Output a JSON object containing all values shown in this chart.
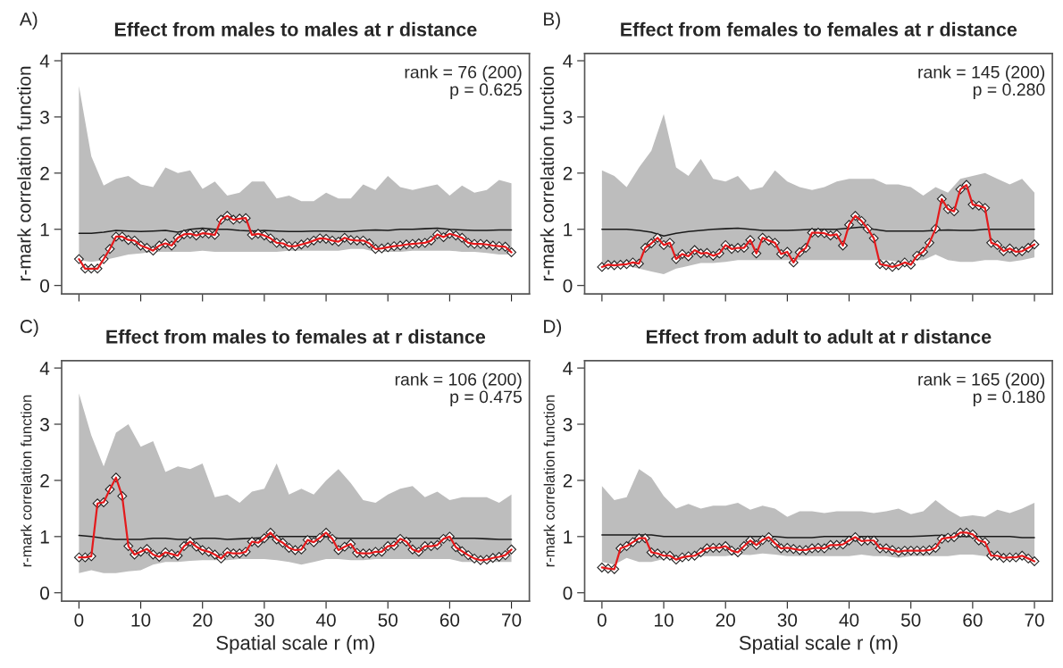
{
  "chart_data": [
    {
      "type": "line",
      "title": "Effect from males to males at r distance",
      "ylabel": "r-mark correlation function",
      "annotations": [
        "A)",
        "rank = 76 (200)\np = 0.625"
      ],
      "xlim": [
        -2.8,
        72.9
      ],
      "xticks": [
        {
          "value": 0,
          "label": null
        },
        {
          "value": 10,
          "label": null
        },
        {
          "value": 20,
          "label": null
        },
        {
          "value": 30,
          "label": null
        },
        {
          "value": 40,
          "label": null
        },
        {
          "value": 50,
          "label": null
        },
        {
          "value": 60,
          "label": null
        },
        {
          "value": 70,
          "label": null
        }
      ],
      "ylim": [
        -0.15,
        4.13
      ],
      "yticks": [
        0,
        1,
        2,
        3,
        4
      ],
      "tick_labels": "y",
      "grid": false,
      "series": [
        {
          "color": "#1a1a1a",
          "marker": "none",
          "x": [
            0,
            2,
            4,
            6,
            8,
            10,
            12,
            14,
            16,
            18,
            20,
            22,
            24,
            26,
            28,
            30,
            32,
            34,
            36,
            38,
            40,
            42,
            44,
            46,
            48,
            50,
            52,
            54,
            56,
            58,
            60,
            62,
            64,
            66,
            68,
            70
          ],
          "values": [
            0.93,
            0.93,
            0.95,
            0.98,
            0.97,
            0.96,
            0.97,
            0.98,
            0.95,
            1.0,
            1.02,
            1.0,
            1.0,
            0.98,
            0.97,
            0.98,
            0.97,
            0.96,
            0.96,
            0.97,
            0.97,
            0.96,
            0.96,
            0.98,
            0.99,
            0.98,
            1.0,
            1.0,
            1.01,
            1.02,
            1.0,
            0.99,
            0.98,
            0.98,
            0.99,
            0.99
          ],
          "lower": [
            0.45,
            0.42,
            0.45,
            0.5,
            0.55,
            0.57,
            0.6,
            0.6,
            0.6,
            0.6,
            0.62,
            0.6,
            0.6,
            0.6,
            0.6,
            0.6,
            0.6,
            0.62,
            0.62,
            0.62,
            0.62,
            0.62,
            0.65,
            0.65,
            0.6,
            0.6,
            0.6,
            0.62,
            0.62,
            0.62,
            0.62,
            0.6,
            0.6,
            0.58,
            0.55,
            0.55
          ],
          "upper": [
            3.55,
            2.3,
            1.78,
            1.9,
            1.95,
            1.8,
            1.75,
            2.1,
            2.0,
            2.05,
            1.72,
            1.85,
            1.6,
            1.65,
            1.85,
            1.85,
            1.55,
            1.6,
            1.5,
            1.5,
            1.65,
            1.55,
            1.55,
            1.8,
            1.7,
            1.95,
            1.75,
            1.7,
            1.75,
            1.8,
            1.6,
            1.78,
            1.65,
            1.7,
            1.88,
            1.82
          ]
        },
        {
          "color": "#e41a1c",
          "marker": "diamond",
          "x": [
            0,
            1,
            2,
            3,
            4,
            5,
            6,
            7,
            8,
            9,
            10,
            11,
            12,
            13,
            14,
            15,
            16,
            17,
            18,
            19,
            20,
            21,
            22,
            23,
            24,
            25,
            26,
            27,
            28,
            29,
            30,
            31,
            32,
            33,
            34,
            35,
            36,
            37,
            38,
            39,
            40,
            41,
            42,
            43,
            44,
            45,
            46,
            47,
            48,
            49,
            50,
            51,
            52,
            53,
            54,
            55,
            56,
            57,
            58,
            59,
            60,
            61,
            62,
            63,
            64,
            65,
            66,
            67,
            68,
            69,
            70
          ],
          "values": [
            0.47,
            0.3,
            0.3,
            0.3,
            0.47,
            0.65,
            0.87,
            0.87,
            0.81,
            0.8,
            0.71,
            0.67,
            0.62,
            0.71,
            0.75,
            0.71,
            0.85,
            0.91,
            0.92,
            0.89,
            0.93,
            0.92,
            0.9,
            1.17,
            1.24,
            1.17,
            1.19,
            1.2,
            0.9,
            0.92,
            0.89,
            0.84,
            0.76,
            0.75,
            0.7,
            0.7,
            0.73,
            0.76,
            0.8,
            0.84,
            0.83,
            0.8,
            0.78,
            0.85,
            0.81,
            0.8,
            0.8,
            0.75,
            0.65,
            0.66,
            0.68,
            0.7,
            0.71,
            0.73,
            0.74,
            0.75,
            0.76,
            0.8,
            0.91,
            0.86,
            0.92,
            0.89,
            0.85,
            0.76,
            0.74,
            0.74,
            0.73,
            0.71,
            0.7,
            0.69,
            0.59
          ]
        }
      ]
    },
    {
      "type": "line",
      "title": "Effect from females to females at r distance",
      "ylabel": "r-mark correlation function",
      "annotations": [
        "B)",
        "rank = 145 (200)\np = 0.280"
      ],
      "xlim": [
        -2.8,
        72.9
      ],
      "xticks": [
        {
          "value": 0,
          "label": null
        },
        {
          "value": 10,
          "label": null
        },
        {
          "value": 20,
          "label": null
        },
        {
          "value": 30,
          "label": null
        },
        {
          "value": 40,
          "label": null
        },
        {
          "value": 50,
          "label": null
        },
        {
          "value": 60,
          "label": null
        },
        {
          "value": 70,
          "label": null
        }
      ],
      "ylim": [
        -0.15,
        4.13
      ],
      "yticks": [
        0,
        1,
        2,
        3,
        4
      ],
      "tick_labels": "y",
      "grid": false,
      "series": [
        {
          "color": "#1a1a1a",
          "marker": "none",
          "x": [
            0,
            2,
            4,
            6,
            8,
            10,
            12,
            14,
            16,
            18,
            20,
            22,
            24,
            26,
            28,
            30,
            32,
            34,
            36,
            38,
            40,
            42,
            44,
            46,
            48,
            50,
            52,
            54,
            56,
            58,
            60,
            62,
            64,
            66,
            68,
            70
          ],
          "values": [
            1.0,
            1.0,
            1.0,
            0.98,
            0.95,
            0.88,
            0.93,
            0.96,
            0.98,
            1.0,
            1.01,
            1.02,
            1.0,
            0.98,
            0.98,
            0.98,
            0.99,
            1.0,
            1.0,
            1.0,
            1.02,
            1.04,
            1.0,
            0.97,
            0.97,
            0.97,
            0.97,
            0.98,
            0.99,
            0.98,
            0.98,
            1.0,
            1.0,
            1.0,
            1.0,
            1.0
          ],
          "lower": [
            0.4,
            0.38,
            0.35,
            0.3,
            0.25,
            0.2,
            0.3,
            0.35,
            0.4,
            0.4,
            0.42,
            0.45,
            0.45,
            0.45,
            0.45,
            0.45,
            0.45,
            0.45,
            0.45,
            0.45,
            0.45,
            0.45,
            0.45,
            0.45,
            0.42,
            0.45,
            0.45,
            0.55,
            0.45,
            0.42,
            0.42,
            0.45,
            0.45,
            0.42,
            0.45,
            0.5
          ],
          "upper": [
            2.05,
            1.95,
            1.75,
            2.1,
            2.4,
            3.05,
            2.1,
            1.95,
            2.25,
            1.9,
            1.85,
            1.95,
            1.7,
            1.75,
            2.05,
            1.85,
            1.75,
            1.7,
            1.75,
            1.85,
            1.9,
            1.9,
            1.9,
            1.8,
            1.8,
            1.75,
            1.6,
            1.75,
            1.65,
            1.9,
            1.95,
            2.0,
            1.9,
            1.8,
            1.9,
            1.65
          ]
        },
        {
          "color": "#e41a1c",
          "marker": "diamond",
          "x": [
            0,
            1,
            2,
            3,
            4,
            5,
            6,
            7,
            8,
            9,
            10,
            11,
            12,
            13,
            14,
            15,
            16,
            17,
            18,
            19,
            20,
            21,
            22,
            23,
            24,
            25,
            26,
            27,
            28,
            29,
            30,
            31,
            32,
            33,
            34,
            35,
            36,
            37,
            38,
            39,
            40,
            41,
            42,
            43,
            44,
            45,
            46,
            47,
            48,
            49,
            50,
            51,
            52,
            53,
            54,
            55,
            56,
            57,
            58,
            59,
            60,
            61,
            62,
            63,
            64,
            65,
            66,
            67,
            68,
            69,
            70
          ],
          "values": [
            0.33,
            0.37,
            0.36,
            0.37,
            0.38,
            0.41,
            0.39,
            0.67,
            0.75,
            0.85,
            0.72,
            0.76,
            0.47,
            0.56,
            0.52,
            0.63,
            0.57,
            0.58,
            0.53,
            0.57,
            0.72,
            0.65,
            0.67,
            0.67,
            0.81,
            0.57,
            0.85,
            0.8,
            0.76,
            0.56,
            0.6,
            0.41,
            0.59,
            0.67,
            0.94,
            0.94,
            0.93,
            0.89,
            0.91,
            0.71,
            1.08,
            1.24,
            1.15,
            1.01,
            0.84,
            0.38,
            0.36,
            0.33,
            0.36,
            0.41,
            0.37,
            0.53,
            0.6,
            0.76,
            1.01,
            1.54,
            1.36,
            1.32,
            1.71,
            1.79,
            1.44,
            1.42,
            1.38,
            0.76,
            0.72,
            0.61,
            0.66,
            0.6,
            0.61,
            0.67,
            0.73
          ]
        }
      ]
    },
    {
      "type": "line",
      "title": "Effect from males to females at r distance",
      "xlabel": "Spatial scale r (m)",
      "ylabel": "r-mark correlation function",
      "annotations": [
        "C)",
        "rank = 106 (200)\np = 0.475"
      ],
      "xlim": [
        -2.8,
        72.9
      ],
      "xticks": [
        0,
        10,
        20,
        30,
        40,
        50,
        60,
        70
      ],
      "ylim": [
        -0.15,
        4.13
      ],
      "yticks": [
        0,
        1,
        2,
        3,
        4
      ],
      "grid": false,
      "series": [
        {
          "color": "#1a1a1a",
          "marker": "none",
          "x": [
            0,
            2,
            4,
            6,
            8,
            10,
            12,
            14,
            16,
            18,
            20,
            22,
            24,
            26,
            28,
            30,
            32,
            34,
            36,
            38,
            40,
            42,
            44,
            46,
            48,
            50,
            52,
            54,
            56,
            58,
            60,
            62,
            64,
            66,
            68,
            70
          ],
          "values": [
            1.02,
            1.0,
            0.97,
            0.95,
            0.95,
            0.95,
            0.97,
            0.97,
            0.95,
            0.95,
            0.97,
            0.97,
            0.95,
            0.96,
            0.97,
            0.98,
            1.0,
            1.0,
            1.0,
            1.0,
            1.0,
            0.97,
            0.97,
            0.97,
            0.97,
            0.97,
            0.97,
            0.97,
            0.97,
            0.97,
            0.97,
            0.97,
            0.97,
            0.96,
            0.95,
            0.95
          ],
          "lower": [
            0.35,
            0.4,
            0.35,
            0.35,
            0.38,
            0.4,
            0.5,
            0.55,
            0.55,
            0.57,
            0.58,
            0.58,
            0.58,
            0.6,
            0.6,
            0.6,
            0.58,
            0.55,
            0.5,
            0.55,
            0.6,
            0.6,
            0.58,
            0.58,
            0.6,
            0.6,
            0.6,
            0.6,
            0.6,
            0.6,
            0.6,
            0.55,
            0.55,
            0.55,
            0.55,
            0.55
          ],
          "upper": [
            3.55,
            2.8,
            2.25,
            2.85,
            3.0,
            2.6,
            2.7,
            2.15,
            2.25,
            2.2,
            2.3,
            1.7,
            1.75,
            1.6,
            1.8,
            1.85,
            2.3,
            1.75,
            1.85,
            1.75,
            2.0,
            2.2,
            1.95,
            1.65,
            1.6,
            1.75,
            1.85,
            1.9,
            1.7,
            1.8,
            1.65,
            1.7,
            1.7,
            1.7,
            1.6,
            1.75
          ]
        },
        {
          "color": "#e41a1c",
          "marker": "diamond",
          "x": [
            0,
            1,
            2,
            3,
            4,
            5,
            6,
            7,
            8,
            9,
            10,
            11,
            12,
            13,
            14,
            15,
            16,
            17,
            18,
            19,
            20,
            21,
            22,
            23,
            24,
            25,
            26,
            27,
            28,
            29,
            30,
            31,
            32,
            33,
            34,
            35,
            36,
            37,
            38,
            39,
            40,
            41,
            42,
            43,
            44,
            45,
            46,
            47,
            48,
            49,
            50,
            51,
            52,
            53,
            54,
            55,
            56,
            57,
            58,
            59,
            60,
            61,
            62,
            63,
            64,
            65,
            66,
            67,
            68,
            69,
            70
          ],
          "values": [
            0.63,
            0.63,
            0.65,
            1.59,
            1.61,
            1.84,
            2.05,
            1.72,
            0.83,
            0.68,
            0.73,
            0.78,
            0.68,
            0.64,
            0.72,
            0.69,
            0.66,
            0.83,
            0.91,
            0.82,
            0.76,
            0.73,
            0.68,
            0.61,
            0.72,
            0.7,
            0.7,
            0.73,
            0.91,
            0.89,
            0.97,
            1.07,
            0.95,
            0.89,
            0.8,
            0.76,
            0.77,
            0.94,
            0.9,
            0.98,
            1.07,
            0.96,
            0.76,
            0.82,
            0.87,
            0.71,
            0.7,
            0.7,
            0.73,
            0.73,
            0.83,
            0.84,
            0.96,
            0.91,
            0.77,
            0.73,
            0.83,
            0.83,
            0.85,
            0.96,
            1.0,
            0.81,
            0.74,
            0.67,
            0.61,
            0.58,
            0.59,
            0.62,
            0.64,
            0.67,
            0.77
          ]
        }
      ]
    },
    {
      "type": "line",
      "title": "Effect from adult to adult at r distance",
      "xlabel": "Spatial scale r (m)",
      "ylabel": "r-mark correlation function",
      "annotations": [
        "D)",
        "rank = 165 (200)\np = 0.180"
      ],
      "xlim": [
        -2.8,
        72.9
      ],
      "xticks": [
        0,
        10,
        20,
        30,
        40,
        50,
        60,
        70
      ],
      "ylim": [
        -0.15,
        4.13
      ],
      "yticks": [
        0,
        1,
        2,
        3,
        4
      ],
      "grid": false,
      "series": [
        {
          "color": "#1a1a1a",
          "marker": "none",
          "x": [
            0,
            2,
            4,
            6,
            8,
            10,
            12,
            14,
            16,
            18,
            20,
            22,
            24,
            26,
            28,
            30,
            32,
            34,
            36,
            38,
            40,
            42,
            44,
            46,
            48,
            50,
            52,
            54,
            56,
            58,
            60,
            62,
            64,
            66,
            68,
            70
          ],
          "values": [
            1.03,
            1.03,
            1.03,
            1.03,
            1.03,
            1.0,
            1.0,
            1.0,
            1.0,
            1.0,
            1.0,
            1.0,
            1.0,
            1.0,
            1.0,
            0.98,
            0.98,
            0.98,
            1.0,
            1.0,
            1.0,
            1.0,
            1.0,
            1.0,
            1.0,
            1.0,
            1.01,
            1.02,
            1.02,
            1.0,
            1.0,
            1.0,
            1.0,
            1.0,
            0.98,
            0.98
          ],
          "lower": [
            0.55,
            0.5,
            0.62,
            0.55,
            0.55,
            0.6,
            0.63,
            0.65,
            0.65,
            0.65,
            0.65,
            0.68,
            0.67,
            0.7,
            0.68,
            0.65,
            0.65,
            0.65,
            0.65,
            0.65,
            0.65,
            0.68,
            0.65,
            0.65,
            0.62,
            0.65,
            0.65,
            0.65,
            0.65,
            0.68,
            0.68,
            0.65,
            0.65,
            0.62,
            0.6,
            0.6
          ],
          "upper": [
            1.9,
            1.65,
            1.7,
            2.2,
            2.05,
            1.72,
            1.5,
            1.58,
            1.5,
            1.55,
            1.55,
            1.6,
            1.48,
            1.55,
            1.5,
            1.35,
            1.45,
            1.45,
            1.42,
            1.45,
            1.45,
            1.45,
            1.42,
            1.45,
            1.5,
            1.4,
            1.45,
            1.65,
            1.48,
            1.35,
            1.38,
            1.35,
            1.48,
            1.42,
            1.5,
            1.6
          ]
        },
        {
          "color": "#e41a1c",
          "marker": "diamond",
          "x": [
            0,
            1,
            2,
            3,
            4,
            5,
            6,
            7,
            8,
            9,
            10,
            11,
            12,
            13,
            14,
            15,
            16,
            17,
            18,
            19,
            20,
            21,
            22,
            23,
            24,
            25,
            26,
            27,
            28,
            29,
            30,
            31,
            32,
            33,
            34,
            35,
            36,
            37,
            38,
            39,
            40,
            41,
            42,
            43,
            44,
            45,
            46,
            47,
            48,
            49,
            50,
            51,
            52,
            53,
            54,
            55,
            56,
            57,
            58,
            59,
            60,
            61,
            62,
            63,
            64,
            65,
            66,
            67,
            68,
            69,
            70
          ],
          "values": [
            0.45,
            0.43,
            0.42,
            0.79,
            0.83,
            0.9,
            0.97,
            0.97,
            0.72,
            0.7,
            0.66,
            0.66,
            0.59,
            0.63,
            0.65,
            0.66,
            0.72,
            0.79,
            0.8,
            0.8,
            0.83,
            0.75,
            0.72,
            0.83,
            0.93,
            0.85,
            0.94,
            0.99,
            0.88,
            0.79,
            0.8,
            0.78,
            0.76,
            0.76,
            0.79,
            0.8,
            0.79,
            0.85,
            0.85,
            0.86,
            0.93,
            0.99,
            0.92,
            0.93,
            0.93,
            0.79,
            0.79,
            0.76,
            0.73,
            0.75,
            0.75,
            0.75,
            0.75,
            0.76,
            0.8,
            0.96,
            0.98,
            0.99,
            1.07,
            1.07,
            1.04,
            0.93,
            0.9,
            0.66,
            0.66,
            0.62,
            0.63,
            0.63,
            0.66,
            0.61,
            0.56
          ]
        }
      ]
    }
  ]
}
